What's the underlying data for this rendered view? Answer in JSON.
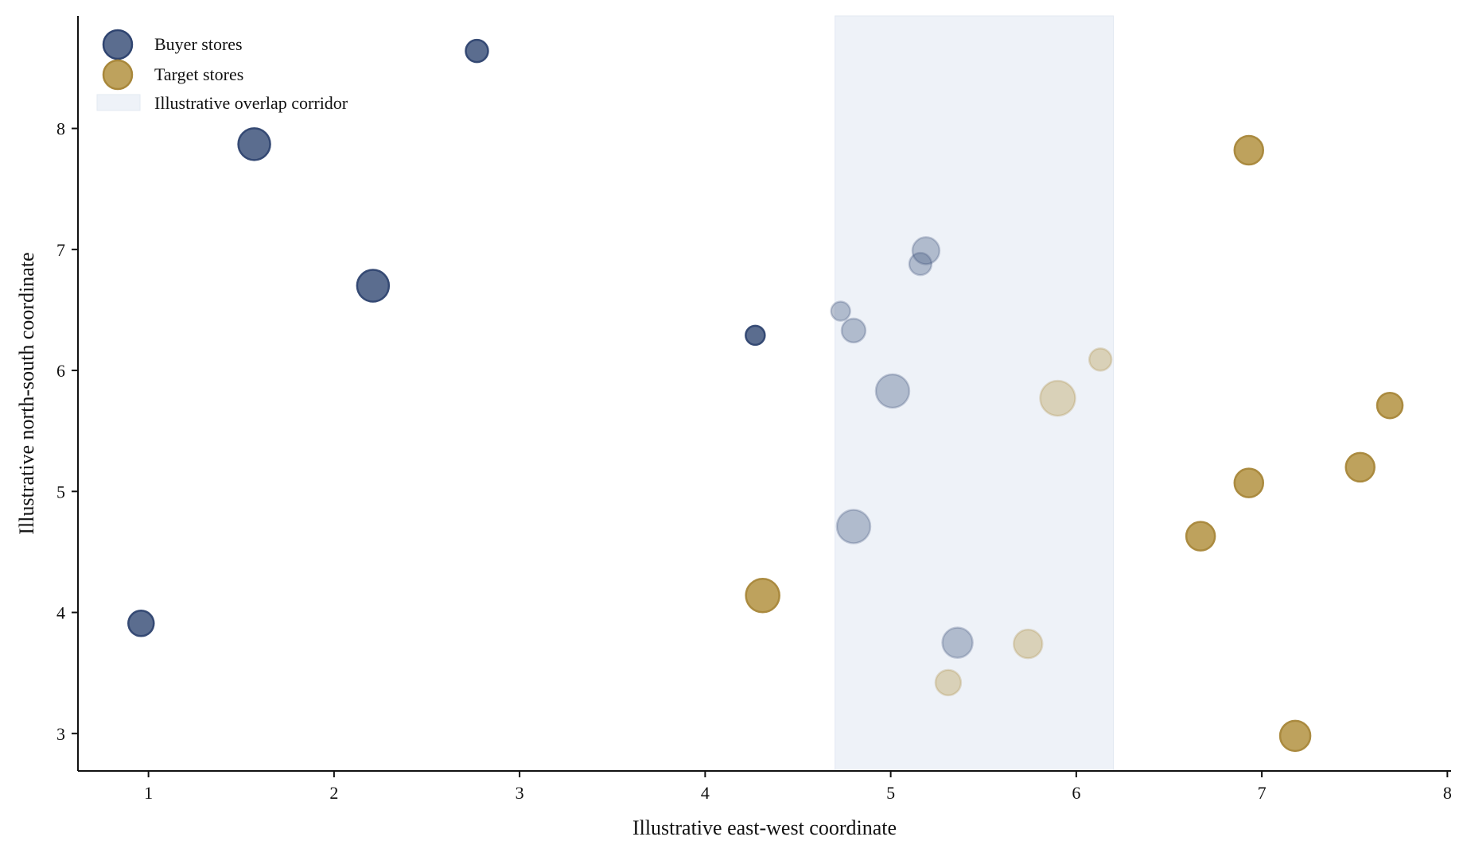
{
  "chart_data": {
    "type": "scatter",
    "title": "",
    "xlabel": "Illustrative east-west coordinate",
    "ylabel": "Illustrative north-south coordinate",
    "xlim": [
      0.62,
      8.02
    ],
    "ylim": [
      2.69,
      8.93
    ],
    "xticks": [
      1,
      2,
      3,
      4,
      5,
      6,
      7,
      8
    ],
    "yticks": [
      3,
      4,
      5,
      6,
      7,
      8
    ],
    "grid": false,
    "legend_position": "top-left",
    "corridor": {
      "label": "Illustrative overlap corridor",
      "x_range": [
        4.7,
        6.2
      ],
      "color": "#eef2f8"
    },
    "series": [
      {
        "name": "Buyer stores",
        "color": "#4d6186",
        "edge_color": "#2f4470",
        "points": [
          {
            "x": 0.96,
            "y": 3.91,
            "size": 16
          },
          {
            "x": 1.57,
            "y": 7.87,
            "size": 20
          },
          {
            "x": 2.21,
            "y": 6.7,
            "size": 20
          },
          {
            "x": 2.77,
            "y": 8.64,
            "size": 14
          },
          {
            "x": 4.27,
            "y": 6.29,
            "size": 12
          },
          {
            "x": 4.73,
            "y": 6.49,
            "size": 12
          },
          {
            "x": 4.8,
            "y": 6.33,
            "size": 15
          },
          {
            "x": 5.01,
            "y": 5.83,
            "size": 21
          },
          {
            "x": 5.16,
            "y": 6.88,
            "size": 14
          },
          {
            "x": 5.19,
            "y": 6.99,
            "size": 17
          },
          {
            "x": 4.8,
            "y": 4.71,
            "size": 21
          },
          {
            "x": 5.36,
            "y": 3.75,
            "size": 19
          }
        ]
      },
      {
        "name": "Target stores",
        "color": "#b99a4f",
        "edge_color": "#a8873a",
        "points": [
          {
            "x": 4.31,
            "y": 4.14,
            "size": 21
          },
          {
            "x": 5.31,
            "y": 3.42,
            "size": 16
          },
          {
            "x": 5.74,
            "y": 3.74,
            "size": 18
          },
          {
            "x": 5.9,
            "y": 5.77,
            "size": 22
          },
          {
            "x": 6.13,
            "y": 6.09,
            "size": 14
          },
          {
            "x": 6.67,
            "y": 4.63,
            "size": 18
          },
          {
            "x": 6.93,
            "y": 7.82,
            "size": 18
          },
          {
            "x": 6.93,
            "y": 5.07,
            "size": 18
          },
          {
            "x": 7.18,
            "y": 2.98,
            "size": 19
          },
          {
            "x": 7.53,
            "y": 5.2,
            "size": 18
          },
          {
            "x": 7.69,
            "y": 5.71,
            "size": 16
          }
        ]
      }
    ]
  }
}
